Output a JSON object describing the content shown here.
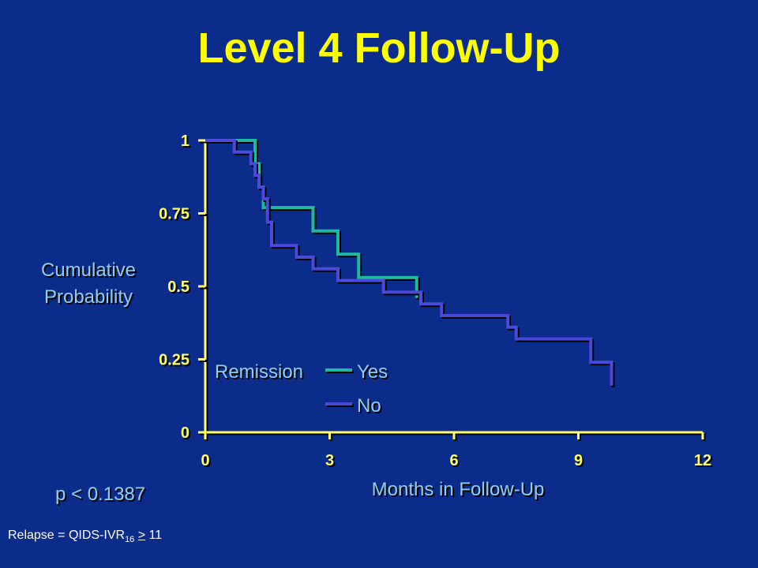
{
  "title": "Level 4 Follow-Up",
  "footnote": {
    "prefix": "Relapse = QIDS-IVR",
    "subscript": "16",
    "operator": ">",
    "suffix": " 11"
  },
  "colors": {
    "background": "#0c2c8c",
    "title": "#ffff00",
    "axis": "#ffff66",
    "label_text": "#ffff66",
    "annotation_text": "#8fd0f0",
    "series_yes": "#1fb8a0",
    "series_no": "#4a4adc"
  },
  "chart_data": {
    "type": "line",
    "step": true,
    "xlabel": "Months in Follow-Up",
    "ylabel": "Cumulative Probability",
    "xlim": [
      0,
      12
    ],
    "ylim": [
      0,
      1
    ],
    "x_ticks": [
      "0",
      "3",
      "6",
      "9",
      "12"
    ],
    "y_ticks": [
      "0",
      "0.25",
      "0.5",
      "0.75",
      "1"
    ],
    "legend_title": "Remission",
    "legend_position": "bottom-left",
    "annotation": "p < 0.1387",
    "grid": false,
    "series": [
      {
        "name": "Yes",
        "color": "#1fb8a0",
        "x": [
          0,
          1.2,
          1.3,
          1.4,
          2.6,
          3.2,
          3.7,
          5.1,
          5.1
        ],
        "y": [
          1,
          0.92,
          0.84,
          0.77,
          0.69,
          0.61,
          0.53,
          0.53,
          0.46
        ]
      },
      {
        "name": "No",
        "color": "#4a4adc",
        "x": [
          0,
          0.7,
          1.1,
          1.2,
          1.3,
          1.4,
          1.5,
          1.6,
          2.2,
          2.6,
          3.2,
          4.3,
          5.2,
          5.7,
          7.3,
          7.5,
          9.3,
          9.8,
          9.8
        ],
        "y": [
          1,
          0.96,
          0.92,
          0.88,
          0.84,
          0.8,
          0.72,
          0.64,
          0.6,
          0.56,
          0.52,
          0.48,
          0.44,
          0.4,
          0.36,
          0.32,
          0.24,
          0.2,
          0.16
        ]
      }
    ]
  }
}
